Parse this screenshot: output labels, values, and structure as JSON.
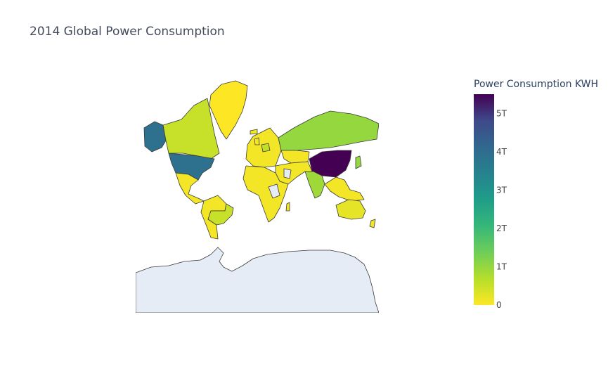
{
  "chart_data": {
    "type": "choropleth",
    "title": "2014 Global Power Consumption",
    "colorbar": {
      "title": "Power Consumption KWH",
      "range": [
        0,
        5500000000000
      ],
      "ticks": [
        {
          "value": 0,
          "label": "0"
        },
        {
          "value": 1000000000000,
          "label": "1T"
        },
        {
          "value": 2000000000000,
          "label": "2T"
        },
        {
          "value": 3000000000000,
          "label": "3T"
        },
        {
          "value": 4000000000000,
          "label": "4T"
        },
        {
          "value": 5000000000000,
          "label": "5T"
        }
      ],
      "colorscale": "Viridis (reversed)"
    },
    "no_data_color": "#e5ecf6",
    "estimated_values_kwh": {
      "China": 5500000000000,
      "United States": 3900000000000,
      "Russia": 1000000000000,
      "Canada": 520000000000,
      "Brazil": 520000000000,
      "India": 900000000000,
      "Japan": 1000000000000,
      "Germany": 580000000000,
      "Australia": 230000000000,
      "Kazakhstan": 90000000000,
      "Greenland": 0,
      "Rest of world": 100000000000
    }
  }
}
